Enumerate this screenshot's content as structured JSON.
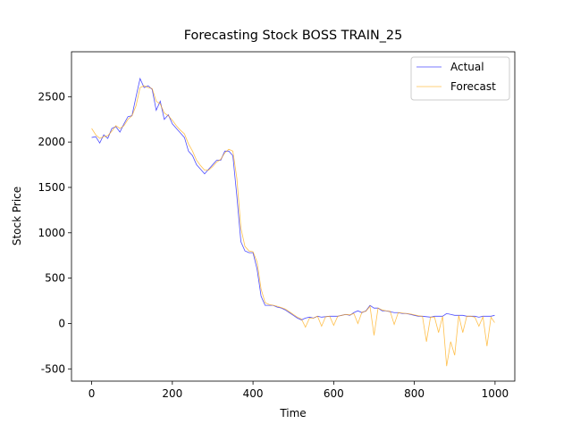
{
  "chart_data": {
    "type": "line",
    "title": "Forecasting Stock BOSS TRAIN_25",
    "x_label": "Time",
    "y_label": "Stock Price",
    "x": [
      0,
      10,
      20,
      30,
      40,
      50,
      60,
      70,
      80,
      90,
      100,
      110,
      120,
      130,
      140,
      150,
      160,
      170,
      180,
      190,
      200,
      210,
      220,
      230,
      240,
      250,
      260,
      270,
      280,
      290,
      300,
      310,
      320,
      330,
      340,
      350,
      360,
      370,
      380,
      390,
      400,
      410,
      420,
      430,
      440,
      450,
      460,
      470,
      480,
      490,
      500,
      510,
      520,
      530,
      540,
      550,
      560,
      570,
      580,
      590,
      600,
      610,
      620,
      630,
      640,
      650,
      660,
      670,
      680,
      690,
      700,
      710,
      720,
      730,
      740,
      750,
      760,
      770,
      780,
      790,
      800,
      810,
      820,
      830,
      840,
      850,
      860,
      870,
      880,
      890,
      900,
      910,
      920,
      930,
      940,
      950,
      960,
      970,
      980,
      990,
      999
    ],
    "series": [
      {
        "name": "Actual",
        "color": "#0000ff",
        "values": [
          2050,
          2060,
          1990,
          2080,
          2040,
          2150,
          2170,
          2110,
          2200,
          2280,
          2290,
          2500,
          2700,
          2600,
          2620,
          2580,
          2350,
          2450,
          2250,
          2300,
          2200,
          2150,
          2100,
          2050,
          1900,
          1850,
          1750,
          1700,
          1650,
          1700,
          1750,
          1800,
          1800,
          1900,
          1900,
          1850,
          1400,
          900,
          800,
          780,
          780,
          600,
          300,
          200,
          200,
          200,
          180,
          170,
          150,
          120,
          90,
          60,
          40,
          60,
          70,
          60,
          80,
          70,
          75,
          80,
          80,
          80,
          90,
          100,
          90,
          120,
          140,
          120,
          140,
          200,
          170,
          170,
          140,
          140,
          130,
          120,
          120,
          110,
          110,
          100,
          90,
          80,
          80,
          75,
          70,
          80,
          80,
          80,
          110,
          100,
          90,
          90,
          90,
          80,
          80,
          80,
          70,
          80,
          80,
          80,
          90
        ]
      },
      {
        "name": "Forecast",
        "color": "#ffa500",
        "values": [
          2150,
          2080,
          2040,
          2060,
          2070,
          2120,
          2180,
          2150,
          2180,
          2250,
          2290,
          2400,
          2600,
          2620,
          2600,
          2590,
          2450,
          2420,
          2320,
          2290,
          2240,
          2180,
          2130,
          2090,
          1980,
          1900,
          1800,
          1740,
          1690,
          1690,
          1730,
          1780,
          1810,
          1880,
          1920,
          1900,
          1600,
          1050,
          850,
          800,
          790,
          680,
          380,
          230,
          210,
          200,
          190,
          175,
          160,
          130,
          100,
          70,
          50,
          -40,
          60,
          60,
          80,
          -30,
          75,
          80,
          -20,
          80,
          90,
          100,
          95,
          110,
          0,
          125,
          135,
          190,
          -130,
          170,
          150,
          140,
          135,
          -10,
          120,
          115,
          110,
          105,
          95,
          85,
          80,
          -200,
          70,
          70,
          -100,
          80,
          -470,
          -200,
          -350,
          90,
          -100,
          80,
          80,
          70,
          -30,
          75,
          -250,
          70,
          10
        ]
      }
    ],
    "xlim": [
      -50,
      1049
    ],
    "ylim": [
      -635,
      2995
    ],
    "xticks": [
      0,
      200,
      400,
      600,
      800,
      1000
    ],
    "yticks": [
      -500,
      0,
      500,
      1000,
      1500,
      2000,
      2500
    ],
    "legend": "upper right"
  }
}
